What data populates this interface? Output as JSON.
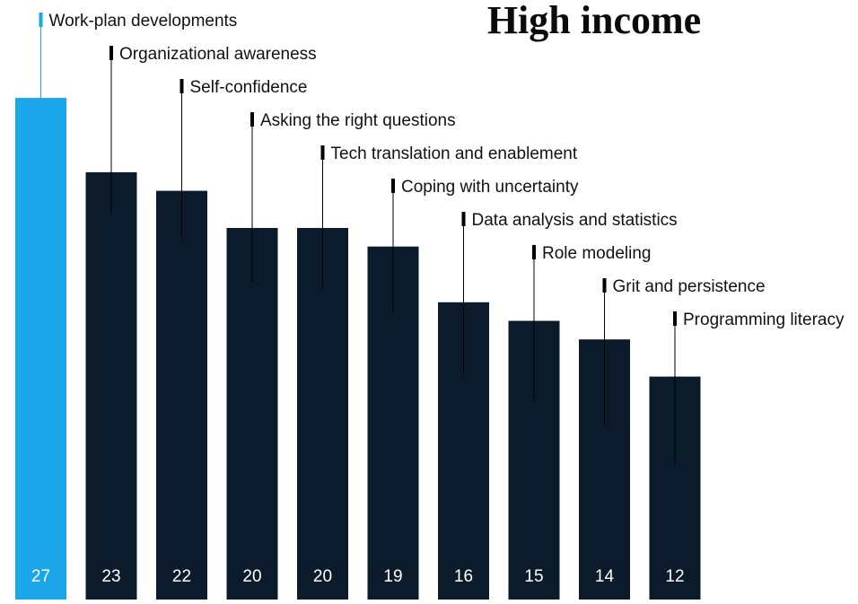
{
  "chart_data": {
    "type": "bar",
    "title": "High income",
    "xlabel": "",
    "ylabel": "",
    "categories": [
      "Work-plan developments",
      "Organizational awareness",
      "Self-confidence",
      "Asking the right questions",
      "Tech translation and enablement",
      "Coping with uncertainty",
      "Data analysis and statistics",
      "Role modeling",
      "Grit and persistence",
      "Programming literacy"
    ],
    "values": [
      27,
      23,
      22,
      20,
      20,
      19,
      16,
      15,
      14,
      12
    ],
    "ylim": [
      0,
      30
    ],
    "grid": false,
    "colors": {
      "highlight": "#1aa6e8",
      "bar": "#0b1b2b",
      "value_text": "#ffffff",
      "label_text": "#111111",
      "leader": "#111111"
    }
  }
}
